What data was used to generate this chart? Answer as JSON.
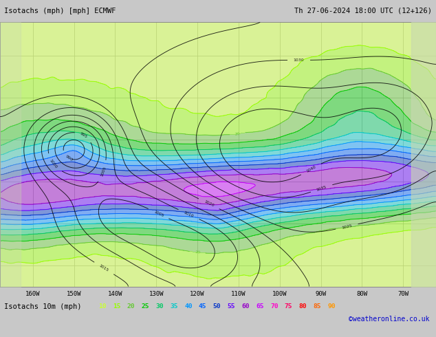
{
  "title_left": "Isotachs (mph) [mph] ECMWF",
  "title_right": "Th 27-06-2024 18:00 UTC (12+126)",
  "legend_label": "Isotachs 10m (mph)",
  "legend_values": [
    10,
    15,
    20,
    25,
    30,
    35,
    40,
    45,
    50,
    55,
    60,
    65,
    70,
    75,
    80,
    85,
    90
  ],
  "legend_colors": [
    "#c8ff32",
    "#96ff00",
    "#64c832",
    "#00c800",
    "#00c864",
    "#00c8c8",
    "#0096ff",
    "#0064ff",
    "#0032c8",
    "#6400ff",
    "#9600c8",
    "#c800ff",
    "#ff00c8",
    "#ff0064",
    "#ff0000",
    "#ff6400",
    "#ff9600"
  ],
  "copyright": "©weatheronline.co.uk",
  "bg_color": "#c8c8c8",
  "map_bg": "#e8e8e8",
  "bottom_bg": "#c8c8c8",
  "figsize": [
    6.34,
    4.9
  ],
  "dpi": 100,
  "xlim": [
    -168,
    -62
  ],
  "ylim": [
    15,
    78
  ],
  "xticks": [
    -160,
    -150,
    -140,
    -130,
    -120,
    -110,
    -100,
    -90,
    -80,
    -70
  ],
  "xtick_labels": [
    "160W",
    "150W",
    "140W",
    "130W",
    "120W",
    "110W",
    "100W",
    "90W",
    "80W",
    "70W"
  ]
}
